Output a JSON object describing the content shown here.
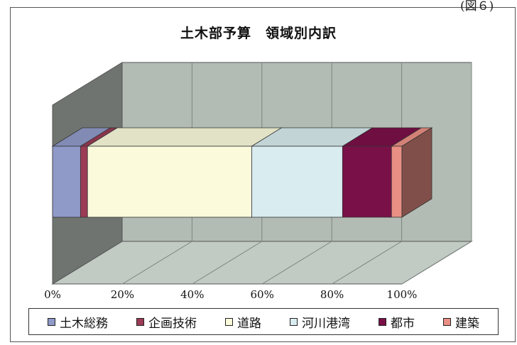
{
  "figure_label": "(図６)",
  "chart_data": {
    "type": "bar",
    "orientation": "horizontal",
    "stacked": "percent",
    "three_d": true,
    "title": "土木部予算　領域別内訳",
    "categories": [
      "土木部予算"
    ],
    "series": [
      {
        "name": "土木総務",
        "value": 8,
        "color": "#8f9ac8"
      },
      {
        "name": "企画技術",
        "value": 2,
        "color": "#9b3b55"
      },
      {
        "name": "道路",
        "value": 47,
        "color": "#fbfbdc"
      },
      {
        "name": "河川港湾",
        "value": 26,
        "color": "#d9ecef"
      },
      {
        "name": "都市",
        "value": 14,
        "color": "#7a1048"
      },
      {
        "name": "建築",
        "value": 3,
        "color": "#ea8f84"
      }
    ],
    "x_ticks": [
      "0%",
      "20%",
      "40%",
      "60%",
      "80%",
      "100%"
    ],
    "xlim": [
      0,
      100
    ],
    "grid": true,
    "legend_position": "bottom",
    "wall_color": "#b3bbb5"
  }
}
